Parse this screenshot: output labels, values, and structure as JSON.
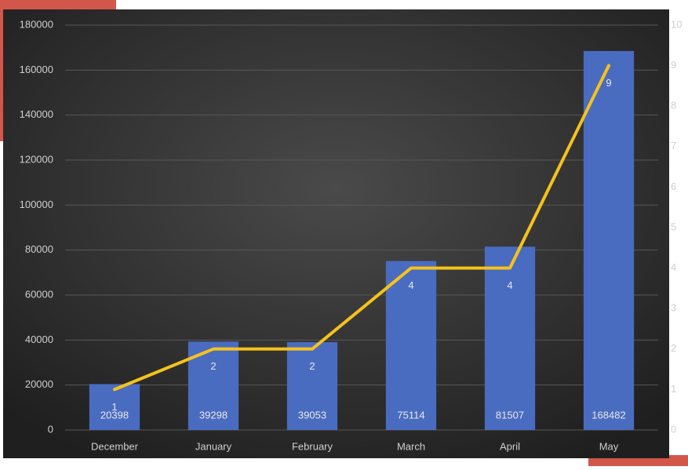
{
  "chart_data": {
    "type": "bar",
    "categories": [
      "December",
      "January",
      "February",
      "March",
      "April",
      "May"
    ],
    "series": [
      {
        "type": "bar",
        "color": "#4a6cc0",
        "values": [
          20398,
          39298,
          39053,
          75114,
          81507,
          168482
        ]
      },
      {
        "type": "line",
        "color": "#f5c21b",
        "axis": "y2",
        "values": [
          1,
          2,
          2,
          4,
          4,
          9
        ]
      }
    ],
    "ylim": [
      0,
      180000
    ],
    "yticks": [
      0,
      20000,
      40000,
      60000,
      80000,
      100000,
      120000,
      140000,
      160000,
      180000
    ],
    "y2lim": [
      0,
      10
    ],
    "y2ticks": [
      0,
      1,
      2,
      3,
      4,
      5,
      6,
      7,
      8,
      9,
      10
    ],
    "grid": true,
    "data_labels": true
  }
}
